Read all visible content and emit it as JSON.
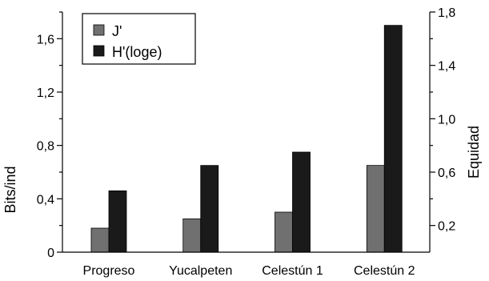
{
  "chart_data": {
    "type": "bar",
    "title": "",
    "categories": [
      "Progreso",
      "Yucalpeten",
      "Celestún 1",
      "Celestún 2"
    ],
    "ylabel_left": "Bits/ind",
    "ylabel_right": "Equidad",
    "ylim_left": [
      0,
      1.8
    ],
    "ylim_right": [
      0,
      1.8
    ],
    "yticks_left": [
      "0",
      "0,4",
      "0,8",
      "1,2",
      "1,6"
    ],
    "yticks_right": [
      "0,2",
      "0,6",
      "1,0",
      "1,4",
      "1,8"
    ],
    "legend_position": "top-left",
    "grid": false,
    "series": [
      {
        "name": "J'",
        "color": "#707070",
        "values": [
          0.18,
          0.25,
          0.3,
          0.65
        ]
      },
      {
        "name": "H'(loge)",
        "color": "#1a1a1a",
        "values": [
          0.46,
          0.65,
          0.75,
          1.7
        ]
      }
    ]
  }
}
